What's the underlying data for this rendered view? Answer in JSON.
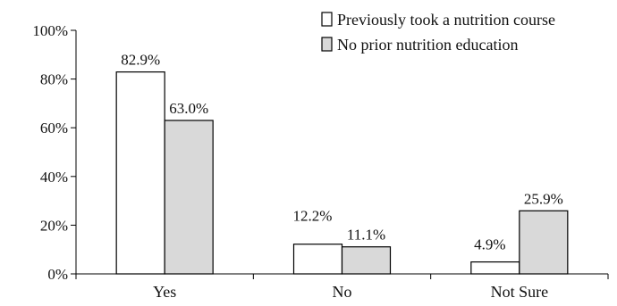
{
  "chart_data": {
    "type": "bar",
    "title": "",
    "xlabel": "",
    "ylabel": "",
    "categories": [
      "Yes",
      "No",
      "Not Sure"
    ],
    "series": [
      {
        "name": "Previously took a nutrition course",
        "values": [
          82.9,
          12.2,
          4.9
        ],
        "value_labels": [
          "82.9%",
          "12.2%",
          "4.9%"
        ],
        "color": "#ffffff"
      },
      {
        "name": "No prior nutrition education",
        "values": [
          63.0,
          11.1,
          25.9
        ],
        "value_labels": [
          "63.0%",
          "11.1%",
          "25.9%"
        ],
        "color": "#d9d9d9"
      }
    ],
    "ylim": [
      0,
      100
    ],
    "y_ticks": [
      0,
      20,
      40,
      60,
      80,
      100
    ],
    "y_tick_labels": [
      "0%",
      "20%",
      "40%",
      "60%",
      "80%",
      "100%"
    ],
    "grid": false,
    "legend_position": "top-right",
    "bar_outline_color": "#000000"
  }
}
